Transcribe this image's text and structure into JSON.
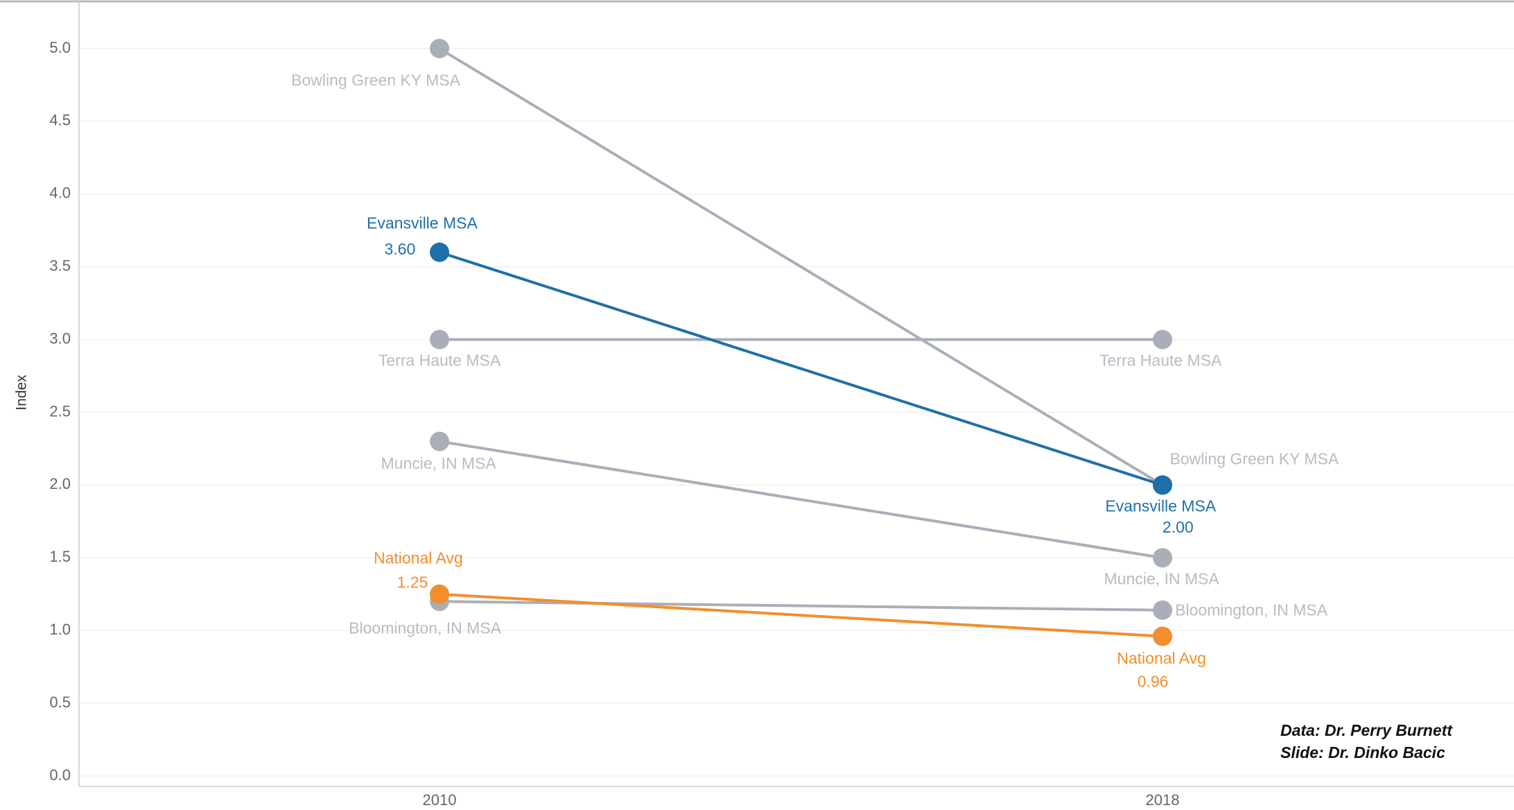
{
  "chart_data": {
    "type": "slope",
    "y_label": "Index",
    "categories": [
      "2010",
      "2018"
    ],
    "ylim": [
      -0.07,
      5.32
    ],
    "yticks": [
      {
        "value": 0,
        "label": "0.0"
      },
      0.5,
      {
        "value": 1,
        "label": "1.0"
      },
      1.5,
      {
        "value": 2,
        "label": "2.0"
      },
      2.5,
      {
        "value": 3,
        "label": "3.0"
      },
      3.5,
      {
        "value": 4,
        "label": "4.0"
      },
      4.5,
      {
        "value": 5,
        "label": "5.0"
      }
    ],
    "grid": true,
    "series": [
      {
        "name": "Bowling Green KY MSA",
        "color": "#a9aeb8",
        "values": [
          5.0,
          2.0
        ]
      },
      {
        "name": "Terra Haute MSA",
        "color": "#a9aeb8",
        "values": [
          3.0,
          3.0
        ]
      },
      {
        "name": "Muncie, IN MSA",
        "color": "#a9aeb8",
        "values": [
          2.3,
          1.5
        ]
      },
      {
        "name": "Bloomington, IN MSA",
        "color": "#a9aeb8",
        "values": [
          1.2,
          1.14
        ]
      },
      {
        "name": "Evansville MSA",
        "color": "#1f6fa8",
        "values": [
          3.6,
          2.0
        ],
        "value_labels": [
          "3.60",
          "2.00"
        ]
      },
      {
        "name": "National Avg",
        "color": "#f28e2b",
        "values": [
          1.25,
          0.96
        ],
        "value_labels": [
          "1.25",
          "0.96"
        ]
      }
    ],
    "annotations": [
      "Data: Dr. Perry Burnett",
      "Slide: Dr. Dinko Bacic"
    ]
  }
}
